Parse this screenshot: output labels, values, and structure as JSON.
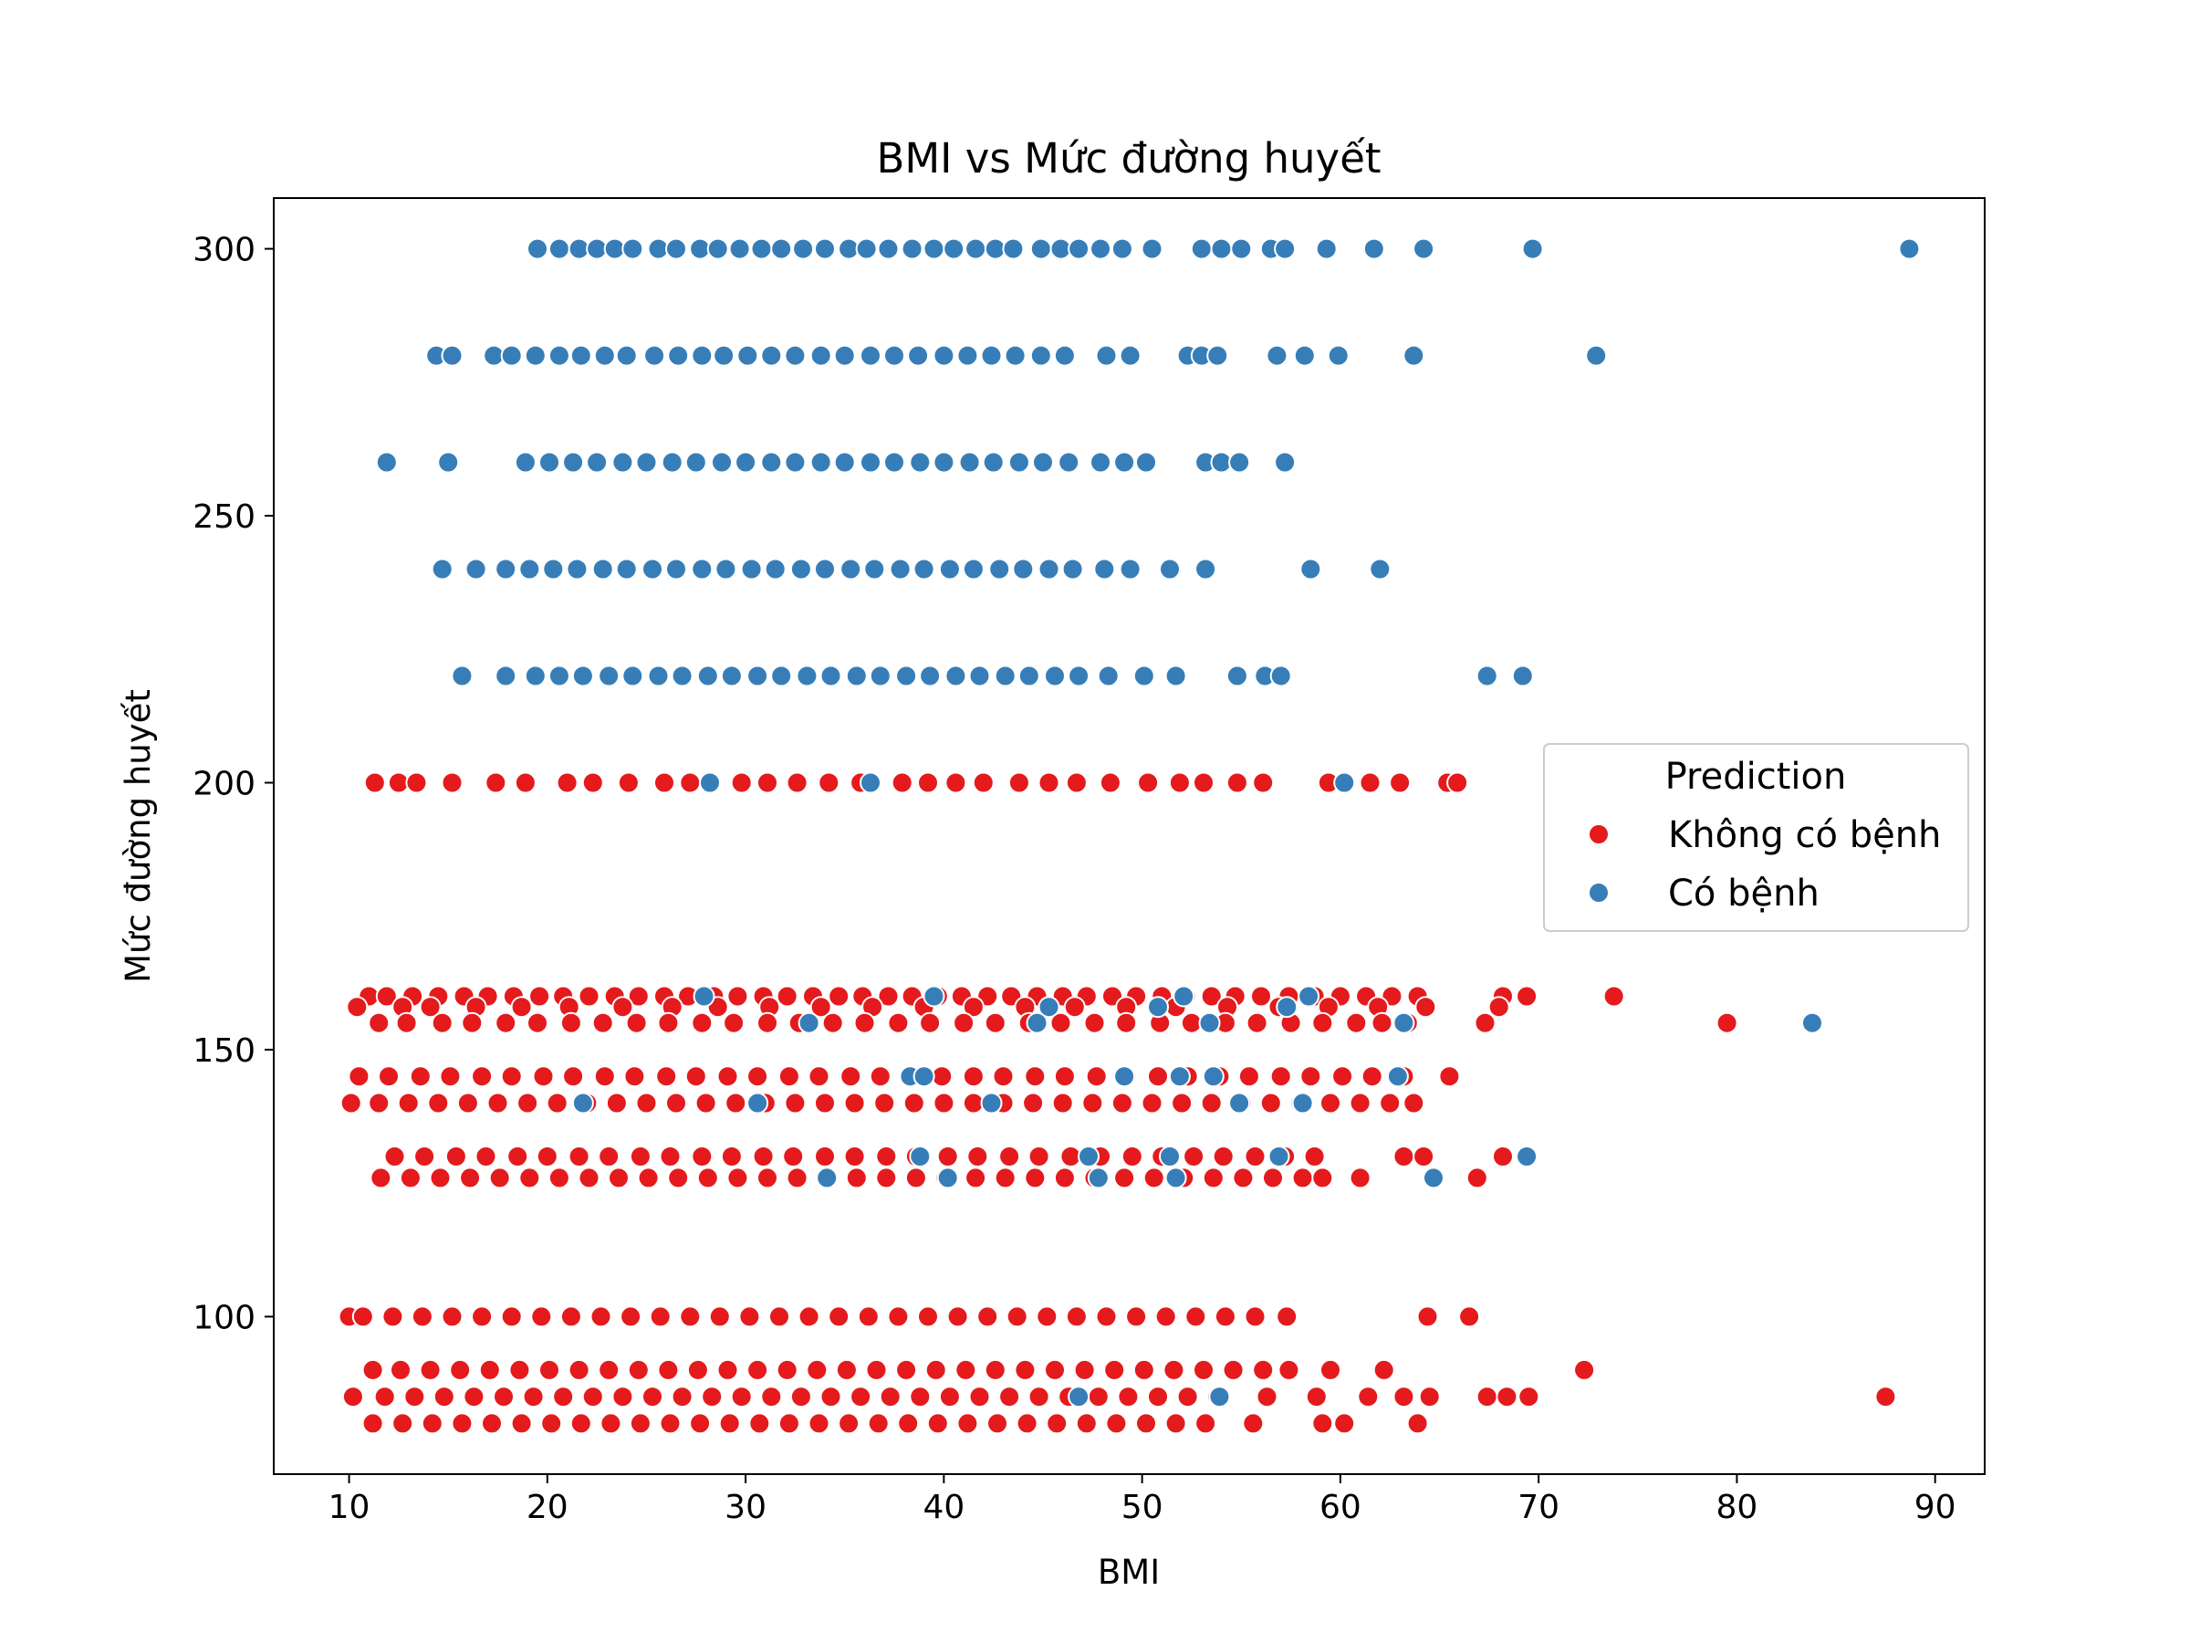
{
  "chart_data": {
    "type": "scatter",
    "title": "BMI vs Mức đường huyết",
    "xlabel": "BMI",
    "ylabel": "Mức đường huyết",
    "xlim": [
      6.2,
      92.5
    ],
    "ylim": [
      70.5,
      309.5
    ],
    "xticks": [
      10,
      20,
      30,
      40,
      50,
      60,
      70,
      80,
      90
    ],
    "yticks": [
      100,
      150,
      200,
      250,
      300
    ],
    "grid": false,
    "legend": {
      "title": "Prediction",
      "placement": "center-right",
      "entries": [
        {
          "label": "Không có bệnh",
          "color": "#e41a1c"
        },
        {
          "label": "Có bệnh",
          "color": "#377eb8"
        }
      ]
    },
    "series": [
      {
        "name": "Không có bệnh",
        "color": "#e41a1c",
        "rows": [
          {
            "y": 200,
            "x": [
              11.3,
              12.5,
              13.4,
              15.2,
              17.4,
              18.9,
              21.0,
              22.3,
              24.1,
              25.9,
              27.2,
              29.8,
              31.1,
              32.6,
              34.2,
              35.8,
              37.9,
              39.2,
              40.6,
              42.0,
              43.8,
              45.3,
              46.7,
              48.4,
              50.3,
              51.9,
              53.1,
              54.8,
              56.1,
              59.4,
              61.5,
              63.0,
              65.4,
              65.9
            ]
          },
          {
            "y": 160,
            "x": [
              11.0,
              11.9,
              13.2,
              14.5,
              15.8,
              17.0,
              18.3,
              19.6,
              20.8,
              22.1,
              23.4,
              24.6,
              25.9,
              27.1,
              28.4,
              29.6,
              30.9,
              32.1,
              33.4,
              34.7,
              35.9,
              37.2,
              38.4,
              39.7,
              40.9,
              42.2,
              43.4,
              44.7,
              46.0,
              47.2,
              48.5,
              49.7,
              51.0,
              52.2,
              53.5,
              54.7,
              56.0,
              57.4,
              58.7,
              60.0,
              61.3,
              62.6,
              63.9,
              68.2,
              69.4,
              73.8
            ]
          },
          {
            "y": 158,
            "x": [
              10.4,
              12.7,
              14.1,
              16.4,
              18.7,
              21.1,
              23.8,
              26.3,
              28.6,
              31.2,
              33.8,
              36.4,
              39.0,
              41.5,
              44.1,
              46.6,
              49.2,
              51.7,
              54.3,
              56.9,
              59.4,
              61.9,
              64.3,
              68.0
            ]
          },
          {
            "y": 155,
            "x": [
              11.5,
              12.9,
              14.7,
              16.2,
              17.9,
              19.5,
              21.2,
              22.8,
              24.5,
              26.1,
              27.8,
              29.4,
              31.1,
              32.7,
              34.4,
              36.0,
              37.7,
              39.3,
              41.0,
              42.6,
              44.3,
              45.9,
              47.6,
              49.2,
              50.9,
              52.5,
              54.2,
              55.8,
              57.5,
              59.1,
              60.8,
              62.1,
              63.4,
              67.3,
              79.5
            ]
          },
          {
            "y": 145,
            "x": [
              10.5,
              12.0,
              13.6,
              15.1,
              16.7,
              18.2,
              19.8,
              21.3,
              22.9,
              24.4,
              26.0,
              27.5,
              29.1,
              30.6,
              32.2,
              33.7,
              35.3,
              36.8,
              38.4,
              39.9,
              41.5,
              43.0,
              44.6,
              46.1,
              47.7,
              49.2,
              50.8,
              52.3,
              53.9,
              55.4,
              57.0,
              58.5,
              60.1,
              61.6,
              63.2,
              65.5
            ]
          },
          {
            "y": 140,
            "x": [
              10.1,
              11.5,
              13.0,
              14.5,
              16.0,
              17.5,
              19.0,
              20.5,
              22.0,
              23.5,
              25.0,
              26.5,
              28.0,
              29.5,
              31.0,
              32.5,
              34.0,
              35.5,
              37.0,
              38.5,
              40.0,
              41.5,
              43.0,
              44.5,
              46.0,
              47.5,
              49.0,
              50.5,
              52.0,
              53.5,
              55.0,
              56.5,
              58.0,
              59.5,
              61.0,
              62.5,
              63.7
            ]
          },
          {
            "y": 130,
            "x": [
              12.3,
              13.8,
              15.4,
              16.9,
              18.5,
              20.0,
              21.6,
              23.1,
              24.7,
              26.2,
              27.8,
              29.3,
              30.9,
              32.4,
              34.0,
              35.5,
              37.1,
              38.6,
              40.2,
              41.7,
              43.3,
              44.8,
              46.4,
              47.9,
              49.5,
              51.0,
              52.6,
              54.1,
              55.7,
              57.2,
              58.7,
              63.2,
              64.2,
              68.2
            ]
          },
          {
            "y": 126,
            "x": [
              11.6,
              13.1,
              14.6,
              16.1,
              17.6,
              19.1,
              20.6,
              22.1,
              23.6,
              25.1,
              26.6,
              28.1,
              29.6,
              31.1,
              32.6,
              34.1,
              35.6,
              37.1,
              38.6,
              40.1,
              41.6,
              43.1,
              44.6,
              46.1,
              47.6,
              49.1,
              50.6,
              52.1,
              53.6,
              55.1,
              56.6,
              58.1,
              59.1,
              61.0,
              66.9
            ]
          },
          {
            "y": 100,
            "x": [
              10.0,
              10.7,
              12.2,
              13.7,
              15.2,
              16.7,
              18.2,
              19.7,
              21.2,
              22.7,
              24.2,
              25.7,
              27.2,
              28.7,
              30.2,
              31.7,
              33.2,
              34.7,
              36.2,
              37.7,
              39.2,
              40.7,
              42.2,
              43.7,
              45.2,
              46.7,
              48.2,
              49.7,
              51.2,
              52.7,
              54.2,
              55.7,
              57.3,
              64.4,
              66.5
            ]
          },
          {
            "y": 90,
            "x": [
              11.2,
              12.6,
              14.1,
              15.6,
              17.1,
              18.6,
              20.1,
              21.6,
              23.1,
              24.6,
              26.1,
              27.6,
              29.1,
              30.6,
              32.1,
              33.6,
              35.1,
              36.6,
              38.1,
              39.6,
              41.1,
              42.6,
              44.1,
              45.6,
              47.1,
              48.6,
              50.1,
              51.6,
              53.1,
              54.6,
              56.1,
              57.4,
              59.5,
              62.2,
              72.3
            ]
          },
          {
            "y": 85,
            "x": [
              10.2,
              11.8,
              13.3,
              14.8,
              16.3,
              17.8,
              19.3,
              20.8,
              22.3,
              23.8,
              25.3,
              26.8,
              28.3,
              29.8,
              31.3,
              32.8,
              34.3,
              35.8,
              37.3,
              38.8,
              40.3,
              41.8,
              43.3,
              44.8,
              46.3,
              47.8,
              49.3,
              50.8,
              52.3,
              53.8,
              56.3,
              58.8,
              61.4,
              63.2,
              64.5,
              67.4,
              68.4,
              69.5,
              87.5
            ]
          },
          {
            "y": 80,
            "x": [
              11.2,
              12.7,
              14.2,
              15.7,
              17.2,
              18.7,
              20.2,
              21.7,
              23.2,
              24.7,
              26.2,
              27.7,
              29.2,
              30.7,
              32.2,
              33.7,
              35.2,
              36.7,
              38.2,
              39.7,
              41.2,
              42.7,
              44.2,
              45.7,
              47.2,
              48.7,
              50.2,
              51.7,
              53.2,
              55.6,
              59.1,
              60.2,
              63.9
            ]
          }
        ]
      },
      {
        "name": "Có bệnh",
        "color": "#377eb8",
        "rows": [
          {
            "y": 300,
            "x": [
              19.5,
              20.6,
              21.6,
              22.5,
              23.4,
              24.3,
              25.6,
              26.5,
              27.7,
              28.6,
              29.7,
              30.8,
              31.8,
              32.9,
              34.0,
              35.2,
              36.1,
              37.2,
              38.4,
              39.5,
              40.5,
              41.6,
              42.6,
              43.5,
              44.9,
              45.9,
              46.8,
              47.9,
              49.0,
              50.5,
              53.0,
              54.0,
              55.0,
              56.5,
              57.2,
              59.3,
              61.7,
              64.2,
              69.7,
              88.7
            ]
          },
          {
            "y": 280,
            "x": [
              14.4,
              15.2,
              17.3,
              18.2,
              19.4,
              20.6,
              21.7,
              22.9,
              24.0,
              25.4,
              26.6,
              27.8,
              28.9,
              30.1,
              31.3,
              32.5,
              33.8,
              35.0,
              36.3,
              37.5,
              38.7,
              40.0,
              41.2,
              42.4,
              43.6,
              44.9,
              46.1,
              48.2,
              49.4,
              52.3,
              53.0,
              53.8,
              56.8,
              58.2,
              59.9,
              63.7,
              72.9
            ]
          },
          {
            "y": 260,
            "x": [
              11.9,
              15.0,
              18.9,
              20.1,
              21.3,
              22.5,
              23.8,
              25.0,
              26.3,
              27.5,
              28.8,
              30.0,
              31.3,
              32.5,
              33.8,
              35.0,
              36.3,
              37.5,
              38.8,
              40.0,
              41.3,
              42.5,
              43.8,
              45.0,
              46.3,
              47.9,
              49.1,
              50.2,
              53.2,
              54.0,
              54.9,
              57.2
            ]
          },
          {
            "y": 240,
            "x": [
              14.7,
              16.4,
              17.9,
              19.1,
              20.3,
              21.5,
              22.8,
              24.0,
              25.3,
              26.5,
              27.8,
              29.0,
              30.3,
              31.5,
              32.8,
              34.0,
              35.3,
              36.5,
              37.8,
              39.0,
              40.3,
              41.5,
              42.8,
              44.0,
              45.3,
              46.5,
              48.1,
              49.4,
              51.4,
              53.2,
              58.5,
              62.0
            ]
          },
          {
            "y": 220,
            "x": [
              15.7,
              17.9,
              19.4,
              20.6,
              21.8,
              23.1,
              24.3,
              25.6,
              26.8,
              28.1,
              29.3,
              30.6,
              31.8,
              33.1,
              34.3,
              35.6,
              36.8,
              38.1,
              39.3,
              40.6,
              41.8,
              43.1,
              44.3,
              45.6,
              46.8,
              48.3,
              50.1,
              51.7,
              54.8,
              56.2,
              57.0,
              67.4,
              69.2
            ]
          },
          {
            "y": 200,
            "x": [
              28.2,
              36.3,
              60.2
            ]
          },
          {
            "y": 160,
            "x": [
              27.9,
              39.5,
              52.1,
              58.4
            ]
          },
          {
            "y": 158,
            "x": [
              45.3,
              50.8,
              57.3
            ]
          },
          {
            "y": 155,
            "x": [
              33.2,
              44.7,
              53.4,
              63.2,
              83.8
            ]
          },
          {
            "y": 145,
            "x": [
              38.3,
              39.0,
              49.1,
              51.9,
              53.6,
              62.9
            ]
          },
          {
            "y": 140,
            "x": [
              21.8,
              30.6,
              42.4,
              54.9,
              58.1
            ]
          },
          {
            "y": 130,
            "x": [
              38.8,
              47.3,
              51.4,
              56.9,
              69.4
            ]
          },
          {
            "y": 126,
            "x": [
              34.1,
              40.2,
              47.8,
              51.7,
              64.7
            ]
          },
          {
            "y": 85,
            "x": [
              46.8,
              53.9
            ]
          }
        ]
      }
    ]
  }
}
